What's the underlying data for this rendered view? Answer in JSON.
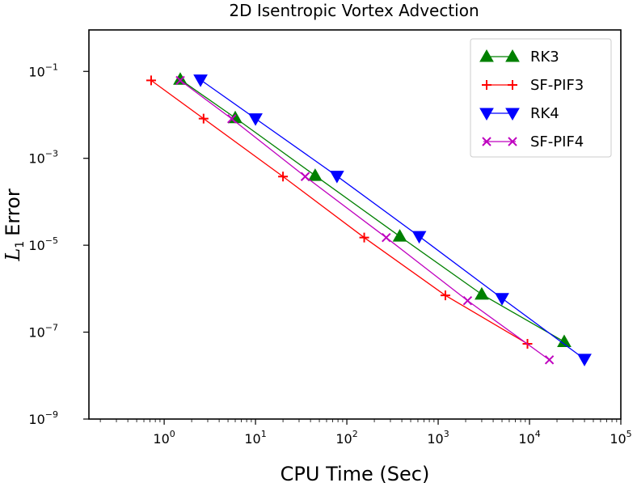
{
  "chart_data": {
    "type": "line",
    "title": "2D Isentropic Vortex Advection",
    "xlabel": "CPU Time (Sec)",
    "ylabel": {
      "main": "L",
      "sub": "1",
      "rest": "Error"
    },
    "x_scale": "log",
    "y_scale": "log",
    "xlim": [
      0.15,
      100000
    ],
    "ylim": [
      1e-09,
      0.9
    ],
    "x_ticks": [
      {
        "value": 1,
        "base": "10",
        "exp": "0"
      },
      {
        "value": 10,
        "base": "10",
        "exp": "1"
      },
      {
        "value": 100,
        "base": "10",
        "exp": "2"
      },
      {
        "value": 1000,
        "base": "10",
        "exp": "3"
      },
      {
        "value": 10000,
        "base": "10",
        "exp": "4"
      },
      {
        "value": 100000,
        "base": "10",
        "exp": "5"
      }
    ],
    "y_ticks": [
      {
        "value": 0.1,
        "base": "10",
        "exp": "−1"
      },
      {
        "value": 0.001,
        "base": "10",
        "exp": "−3"
      },
      {
        "value": 1e-05,
        "base": "10",
        "exp": "−5"
      },
      {
        "value": 1e-07,
        "base": "10",
        "exp": "−7"
      },
      {
        "value": 1e-09,
        "base": "10",
        "exp": "−9"
      }
    ],
    "grid": false,
    "legend_position": "top-right",
    "series": [
      {
        "name": "RK3",
        "color": "#008000",
        "marker": "triangle-up",
        "x": [
          1.5,
          6.0,
          45,
          380,
          3000,
          24000
        ],
        "y": [
          0.065,
          0.0085,
          0.0004,
          1.6e-05,
          7.4e-07,
          6e-08
        ]
      },
      {
        "name": "SF-PIF3",
        "color": "#ff0000",
        "marker": "plus",
        "x": [
          0.72,
          2.7,
          20,
          155,
          1200,
          9500
        ],
        "y": [
          0.062,
          0.0082,
          0.00038,
          1.5e-05,
          7e-07,
          5.4e-08
        ]
      },
      {
        "name": "RK4",
        "color": "#0000ff",
        "marker": "triangle-down",
        "x": [
          2.5,
          10,
          78,
          620,
          5000,
          40000
        ],
        "y": [
          0.064,
          0.0082,
          0.00039,
          1.6e-05,
          6e-07,
          2.4e-08
        ]
      },
      {
        "name": "SF-PIF4",
        "color": "#bf00bf",
        "marker": "x",
        "x": [
          1.5,
          5.5,
          35,
          270,
          2100,
          16500
        ],
        "y": [
          0.062,
          0.0081,
          0.00038,
          1.5e-05,
          5.3e-07,
          2.3e-08
        ]
      }
    ]
  }
}
